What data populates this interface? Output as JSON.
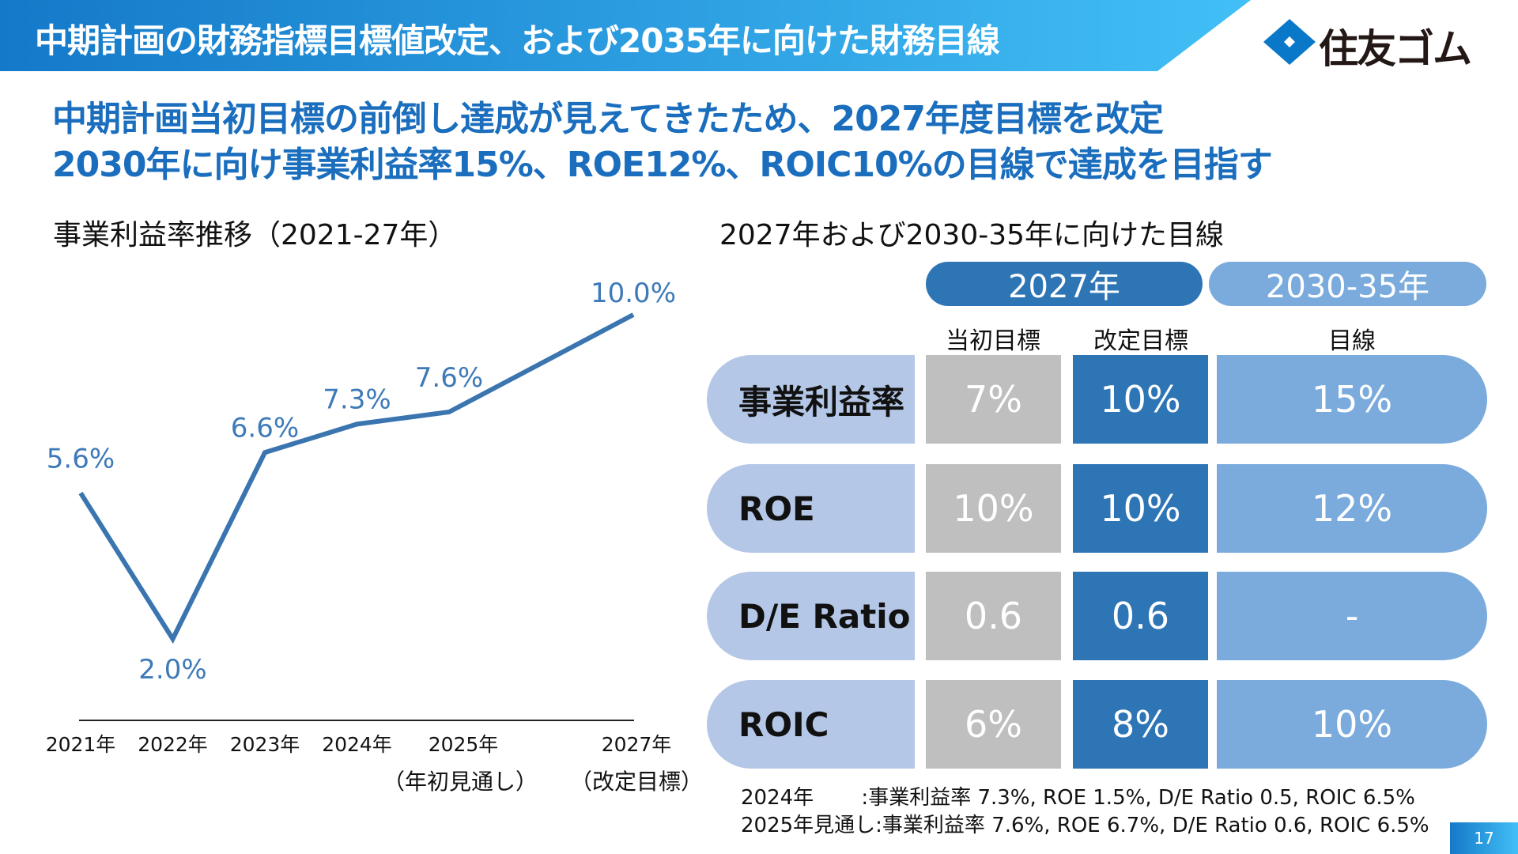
{
  "header": {
    "title": "中期計画の財務指標目標値改定、および2035年に向けた財務目線",
    "logo_text": "住友ゴム",
    "accent": "#1479c9"
  },
  "subtitle": [
    "中期計画当初目標の前倒し達成が見えてきたため、2027年度目標を改定",
    "2030年に向け事業利益率15%、ROE12%、ROIC10%の目線で達成を目指す"
  ],
  "chart_data": {
    "type": "line",
    "title": "事業利益率推移（2021-27年）",
    "categories": [
      "2021年",
      "2022年",
      "2023年",
      "2024年",
      "2025年",
      "2027年"
    ],
    "x": [
      2021,
      2022,
      2023,
      2024,
      2025,
      2027
    ],
    "category_notes": [
      "",
      "",
      "",
      "",
      "（年初見通し）",
      "（改定目標）"
    ],
    "values": [
      5.6,
      2.0,
      6.6,
      7.3,
      7.6,
      10.0
    ],
    "data_labels": [
      "5.6%",
      "2.0%",
      "6.6%",
      "7.3%",
      "7.6%",
      "10.0%"
    ],
    "ylim": [
      0,
      10
    ],
    "grid": false,
    "color": "#3a75b0"
  },
  "targets": {
    "title": "2027年および2030-35年に向けた目線",
    "group_headers": [
      "2027年",
      "2030-35年"
    ],
    "column_headers": [
      "当初目標",
      "改定目標",
      "目線"
    ],
    "rows": [
      {
        "label": "事業利益率",
        "values": [
          "7%",
          "10%",
          "15%"
        ]
      },
      {
        "label": "ROE",
        "values": [
          "10%",
          "10%",
          "12%"
        ]
      },
      {
        "label": "D/E Ratio",
        "values": [
          "0.6",
          "0.6",
          "-"
        ]
      },
      {
        "label": "ROIC",
        "values": [
          "6%",
          "8%",
          "10%"
        ]
      }
    ],
    "colors": {
      "label": "#b4c7e7",
      "initial": "#bfbfbf",
      "revised": "#2e75b6",
      "outlook": "#7aabdc"
    }
  },
  "footnotes": [
    "2024年　　 :事業利益率 7.3%, ROE 1.5%, D/E Ratio 0.5, ROIC 6.5%",
    "2025年見通し:事業利益率 7.6%, ROE 6.7%, D/E Ratio 0.6, ROIC 6.5%"
  ],
  "page_number": "17"
}
